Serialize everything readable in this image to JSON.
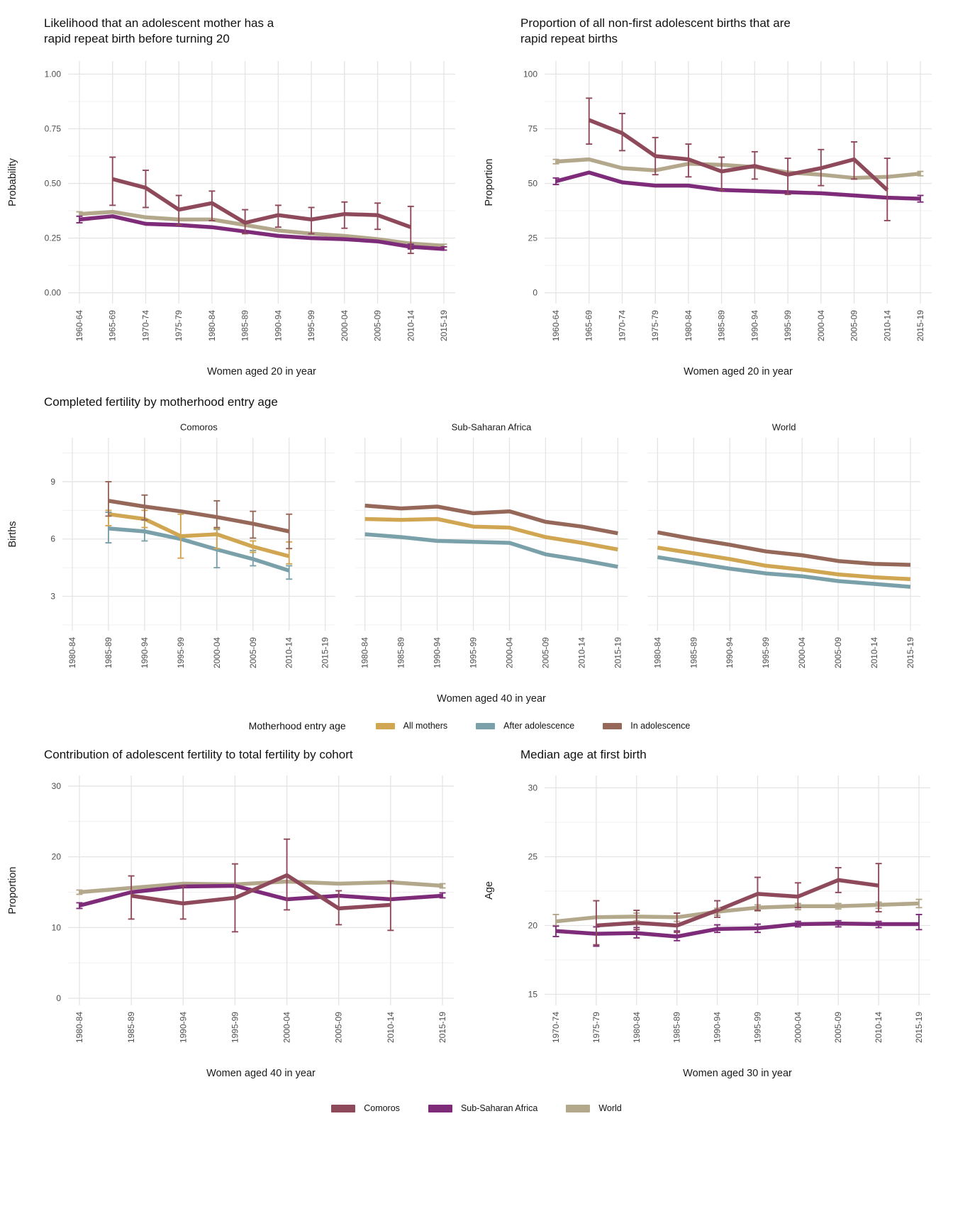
{
  "legends": {
    "motherhood": {
      "title": "Motherhood entry age",
      "entries": [
        {
          "label": "All mothers",
          "color": "#d1a653"
        },
        {
          "label": "After adolescence",
          "color": "#7aa0aa"
        },
        {
          "label": "In adolescence",
          "color": "#96685a"
        }
      ]
    },
    "region": {
      "entries": [
        {
          "label": "Comoros",
          "color": "#8e4a5b"
        },
        {
          "label": "Sub-Saharan Africa",
          "color": "#7e2c79"
        },
        {
          "label": "World",
          "color": "#b3a88b"
        }
      ]
    }
  },
  "chart_data": [
    {
      "id": "rrb-likelihood",
      "type": "line",
      "title": "Likelihood that an adolescent mother has a rapid repeat birth before turning 20",
      "title_lines": [
        "Likelihood that an adolescent mother has a",
        "rapid repeat birth before turning 20"
      ],
      "ylabel": "Probability",
      "xlabel": "Women aged 20 in year",
      "ylim": [
        -0.05,
        1.06
      ],
      "yticks": [
        {
          "v": 0,
          "label": "0.00"
        },
        {
          "v": 0.25,
          "label": "0.25"
        },
        {
          "v": 0.5,
          "label": "0.50"
        },
        {
          "v": 0.75,
          "label": "0.75"
        },
        {
          "v": 1,
          "label": "1.00"
        }
      ],
      "categories": [
        "1960-64",
        "1965-69",
        "1970-74",
        "1975-79",
        "1980-84",
        "1985-89",
        "1990-94",
        "1995-99",
        "2000-04",
        "2005-09",
        "2010-14",
        "2015-19"
      ],
      "series": [
        {
          "name": "World",
          "color": "#b3a88b",
          "values": [
            0.36,
            0.37,
            0.345,
            0.335,
            0.335,
            0.31,
            0.285,
            0.27,
            0.26,
            0.245,
            0.225,
            0.215
          ],
          "lo": [
            0.35,
            null,
            null,
            null,
            null,
            null,
            null,
            null,
            null,
            null,
            null,
            0.21
          ],
          "hi": [
            0.37,
            null,
            null,
            null,
            null,
            null,
            null,
            null,
            null,
            null,
            null,
            0.222
          ]
        },
        {
          "name": "Sub-Saharan Africa",
          "color": "#7e2c79",
          "values": [
            0.335,
            0.35,
            0.315,
            0.31,
            0.3,
            0.28,
            0.26,
            0.25,
            0.245,
            0.235,
            0.21,
            0.2
          ],
          "lo": [
            0.32,
            null,
            null,
            null,
            null,
            null,
            null,
            null,
            null,
            null,
            0.2,
            0.195
          ],
          "hi": [
            0.35,
            null,
            null,
            null,
            null,
            null,
            null,
            null,
            null,
            null,
            0.222,
            0.21
          ]
        },
        {
          "name": "Comoros",
          "color": "#8e4a5b",
          "values": [
            null,
            0.52,
            0.48,
            0.38,
            0.41,
            0.32,
            0.355,
            0.335,
            0.36,
            0.355,
            0.3,
            null
          ],
          "lo": [
            null,
            0.4,
            0.39,
            0.31,
            0.33,
            0.27,
            0.3,
            0.27,
            0.295,
            0.29,
            0.18,
            null
          ],
          "hi": [
            null,
            0.62,
            0.56,
            0.445,
            0.465,
            0.38,
            0.4,
            0.39,
            0.415,
            0.41,
            0.395,
            null
          ]
        }
      ]
    },
    {
      "id": "rrb-proportion",
      "type": "line",
      "title": "Proportion of all non-first adolescent births that are rapid repeat births",
      "title_lines": [
        "Proportion of all non-first adolescent births that are",
        "rapid repeat births"
      ],
      "ylabel": "Proportion",
      "xlabel": "Women aged 20 in year",
      "ylim": [
        -5,
        106
      ],
      "yticks": [
        {
          "v": 0,
          "label": "0"
        },
        {
          "v": 25,
          "label": "25"
        },
        {
          "v": 50,
          "label": "50"
        },
        {
          "v": 75,
          "label": "75"
        },
        {
          "v": 100,
          "label": "100"
        }
      ],
      "categories": [
        "1960-64",
        "1965-69",
        "1970-74",
        "1975-79",
        "1980-84",
        "1985-89",
        "1990-94",
        "1995-99",
        "2000-04",
        "2005-09",
        "2010-14",
        "2015-19"
      ],
      "series": [
        {
          "name": "World",
          "color": "#b3a88b",
          "values": [
            60,
            61,
            57,
            56,
            59,
            58.5,
            57.5,
            55,
            54,
            52.5,
            53,
            54.5
          ],
          "lo": [
            59,
            null,
            null,
            null,
            null,
            null,
            null,
            null,
            null,
            null,
            null,
            53.5
          ],
          "hi": [
            61,
            null,
            null,
            null,
            null,
            null,
            null,
            null,
            null,
            null,
            null,
            55.5
          ]
        },
        {
          "name": "Sub-Saharan Africa",
          "color": "#7e2c79",
          "values": [
            51,
            55,
            50.5,
            49,
            49,
            47,
            46.5,
            46,
            45.5,
            44.5,
            43.5,
            43
          ],
          "lo": [
            49.5,
            null,
            null,
            null,
            null,
            null,
            null,
            null,
            null,
            null,
            null,
            41.5
          ],
          "hi": [
            52.5,
            null,
            null,
            null,
            null,
            null,
            null,
            null,
            null,
            null,
            null,
            44.5
          ]
        },
        {
          "name": "Comoros",
          "color": "#8e4a5b",
          "values": [
            null,
            79,
            73,
            62.5,
            61,
            55.5,
            58,
            54,
            57,
            61,
            47,
            null
          ],
          "lo": [
            null,
            68,
            65,
            54,
            53,
            47,
            52,
            45,
            49,
            52,
            33,
            null
          ],
          "hi": [
            null,
            89,
            82,
            71,
            68,
            62,
            64.5,
            61.5,
            65.5,
            69,
            61.5,
            null
          ]
        }
      ]
    },
    {
      "id": "completed-fertility",
      "type": "line",
      "title": "Completed fertility by motherhood entry age",
      "ylabel": "Births",
      "xlabel": "Women aged 40 in year",
      "ylim": [
        1.2,
        11.3
      ],
      "yticks": [
        {
          "v": 3,
          "label": "3"
        },
        {
          "v": 6,
          "label": "6"
        },
        {
          "v": 9,
          "label": "9"
        }
      ],
      "categories": [
        "1980-84",
        "1985-89",
        "1990-94",
        "1995-99",
        "2000-04",
        "2005-09",
        "2010-14",
        "2015-19"
      ],
      "facets": [
        {
          "label": "Comoros",
          "series": [
            {
              "name": "After adolescence",
              "color": "#7aa0aa",
              "values": [
                null,
                6.55,
                6.4,
                6.0,
                5.45,
                4.95,
                4.35,
                null
              ],
              "lo": [
                null,
                5.8,
                5.9,
                null,
                4.5,
                4.6,
                3.9,
                null
              ],
              "hi": [
                null,
                7.4,
                7.0,
                null,
                6.5,
                5.4,
                4.6,
                null
              ]
            },
            {
              "name": "All mothers",
              "color": "#d1a653",
              "values": [
                null,
                7.3,
                7.05,
                6.15,
                6.25,
                5.6,
                5.1,
                null
              ],
              "lo": [
                null,
                6.7,
                6.6,
                5.0,
                5.5,
                5.3,
                4.7,
                null
              ],
              "hi": [
                null,
                7.5,
                7.5,
                7.3,
                6.55,
                5.9,
                5.85,
                null
              ]
            },
            {
              "name": "In adolescence",
              "color": "#96685a",
              "values": [
                null,
                8.0,
                7.7,
                7.45,
                7.15,
                6.8,
                6.4,
                null
              ],
              "lo": [
                null,
                7.2,
                7.0,
                null,
                6.6,
                6.05,
                5.5,
                null
              ],
              "hi": [
                null,
                9.0,
                8.3,
                null,
                8.0,
                7.45,
                7.3,
                null
              ]
            }
          ]
        },
        {
          "label": "Sub-Saharan Africa",
          "series": [
            {
              "name": "After adolescence",
              "color": "#7aa0aa",
              "values": [
                6.25,
                6.1,
                5.9,
                5.85,
                5.8,
                5.2,
                4.9,
                4.55
              ]
            },
            {
              "name": "All mothers",
              "color": "#d1a653",
              "values": [
                7.05,
                7.0,
                7.05,
                6.65,
                6.6,
                6.1,
                5.8,
                5.45
              ]
            },
            {
              "name": "In adolescence",
              "color": "#96685a",
              "values": [
                7.75,
                7.6,
                7.7,
                7.35,
                7.45,
                6.9,
                6.65,
                6.3
              ]
            }
          ]
        },
        {
          "label": "World",
          "series": [
            {
              "name": "After adolescence",
              "color": "#7aa0aa",
              "values": [
                5.05,
                4.75,
                4.45,
                4.2,
                4.05,
                3.8,
                3.65,
                3.5
              ]
            },
            {
              "name": "All mothers",
              "color": "#d1a653",
              "values": [
                5.55,
                5.25,
                4.95,
                4.6,
                4.4,
                4.15,
                4.0,
                3.9
              ]
            },
            {
              "name": "In adolescence",
              "color": "#96685a",
              "values": [
                6.35,
                6.0,
                5.7,
                5.35,
                5.15,
                4.85,
                4.7,
                4.65
              ]
            }
          ]
        }
      ]
    },
    {
      "id": "adolescent-contribution",
      "type": "line",
      "title": "Contribution of adolescent fertility to total fertility by cohort",
      "ylabel": "Proportion",
      "xlabel": "Women aged 40 in year",
      "ylim": [
        -1,
        31.5
      ],
      "yticks": [
        {
          "v": 0,
          "label": "0"
        },
        {
          "v": 10,
          "label": "10"
        },
        {
          "v": 20,
          "label": "20"
        },
        {
          "v": 30,
          "label": "30"
        }
      ],
      "categories": [
        "1980-84",
        "1985-89",
        "1990-94",
        "1995-99",
        "2000-04",
        "2005-09",
        "2010-14",
        "2015-19"
      ],
      "series": [
        {
          "name": "World",
          "color": "#b3a88b",
          "values": [
            15.0,
            15.6,
            16.2,
            16.1,
            16.5,
            16.2,
            16.4,
            15.9
          ],
          "lo": [
            14.7,
            null,
            null,
            null,
            null,
            null,
            null,
            15.6
          ],
          "hi": [
            15.3,
            null,
            null,
            null,
            null,
            null,
            null,
            16.2
          ]
        },
        {
          "name": "Sub-Saharan Africa",
          "color": "#7e2c79",
          "values": [
            13.1,
            15.0,
            15.8,
            15.9,
            14.0,
            14.5,
            14.0,
            14.5
          ],
          "lo": [
            12.7,
            null,
            null,
            null,
            null,
            null,
            null,
            14.2
          ],
          "hi": [
            13.5,
            null,
            null,
            null,
            null,
            null,
            null,
            14.9
          ]
        },
        {
          "name": "Comoros",
          "color": "#8e4a5b",
          "values": [
            null,
            14.5,
            13.4,
            14.2,
            17.4,
            12.7,
            13.2,
            null
          ],
          "lo": [
            null,
            11.2,
            11.2,
            9.4,
            12.5,
            10.4,
            9.6,
            null
          ],
          "hi": [
            null,
            17.3,
            15.9,
            19.0,
            22.5,
            15.2,
            16.6,
            null
          ]
        }
      ]
    },
    {
      "id": "median-age-first-birth",
      "type": "line",
      "title": "Median age at first birth",
      "ylabel": "Age",
      "xlabel": "Women aged 30 in year",
      "ylim": [
        14.2,
        30.9
      ],
      "yticks": [
        {
          "v": 15,
          "label": "15"
        },
        {
          "v": 20,
          "label": "20"
        },
        {
          "v": 25,
          "label": "25"
        },
        {
          "v": 30,
          "label": "30"
        }
      ],
      "categories": [
        "1970-74",
        "1975-79",
        "1980-84",
        "1985-89",
        "1990-94",
        "1995-99",
        "2000-04",
        "2005-09",
        "2010-14",
        "2015-19"
      ],
      "series": [
        {
          "name": "World",
          "color": "#b3a88b",
          "values": [
            20.3,
            20.6,
            20.65,
            20.6,
            21.0,
            21.3,
            21.4,
            21.4,
            21.5,
            21.6
          ],
          "lo": [
            20.0,
            null,
            20.35,
            20.3,
            20.75,
            21.05,
            21.15,
            21.2,
            21.25,
            21.3
          ],
          "hi": [
            20.8,
            null,
            20.9,
            20.9,
            21.25,
            21.5,
            21.6,
            21.6,
            21.7,
            21.9
          ]
        },
        {
          "name": "Sub-Saharan Africa",
          "color": "#7e2c79",
          "values": [
            19.6,
            19.4,
            19.45,
            19.2,
            19.75,
            19.8,
            20.1,
            20.15,
            20.1,
            20.1
          ],
          "lo": [
            19.2,
            18.5,
            19.1,
            18.9,
            19.5,
            19.5,
            19.9,
            19.9,
            19.85,
            19.7
          ],
          "hi": [
            19.95,
            19.9,
            19.85,
            19.6,
            20.05,
            20.1,
            20.3,
            20.35,
            20.3,
            20.8
          ]
        },
        {
          "name": "Comoros",
          "color": "#8e4a5b",
          "values": [
            null,
            20.0,
            20.2,
            20.0,
            21.1,
            22.3,
            22.1,
            23.3,
            22.9,
            null
          ],
          "lo": [
            null,
            18.6,
            19.7,
            19.5,
            20.6,
            21.1,
            21.3,
            22.4,
            21.0,
            null
          ],
          "hi": [
            null,
            21.8,
            21.1,
            20.9,
            21.8,
            23.5,
            23.1,
            24.2,
            24.5,
            null
          ]
        }
      ]
    }
  ]
}
